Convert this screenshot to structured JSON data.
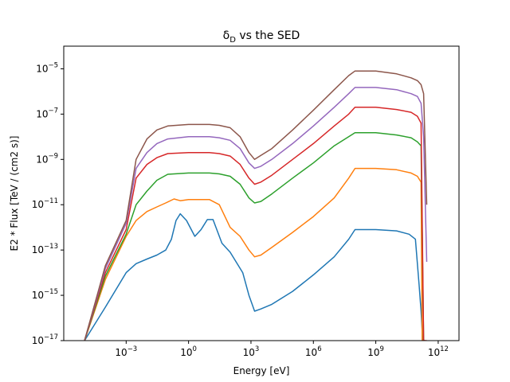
{
  "chart_data": {
    "type": "line",
    "title": "δ",
    "title_sub": "D",
    "title_rest": " vs the SED",
    "xlabel": "Energy [eV]",
    "ylabel": "E2 * Flux [TeV / (cm2 s)]",
    "x_scale": "log",
    "y_scale": "log",
    "xlim": [
      1e-06,
      10000000000000.0
    ],
    "ylim": [
      1e-17,
      0.0001
    ],
    "grid": false,
    "legend": "none",
    "x_ticks": [
      {
        "value": 0.001,
        "base": "10",
        "exp": "−3"
      },
      {
        "value": 1,
        "base": "10",
        "exp": "0"
      },
      {
        "value": 1000,
        "base": "10",
        "exp": "3"
      },
      {
        "value": 1000000,
        "base": "10",
        "exp": "6"
      },
      {
        "value": 1000000000,
        "base": "10",
        "exp": "9"
      },
      {
        "value": 1000000000000,
        "base": "10",
        "exp": "12"
      }
    ],
    "y_ticks": [
      {
        "value": 1e-17,
        "base": "10",
        "exp": "−17"
      },
      {
        "value": 1e-15,
        "base": "10",
        "exp": "−15"
      },
      {
        "value": 1e-13,
        "base": "10",
        "exp": "−13"
      },
      {
        "value": 1e-11,
        "base": "10",
        "exp": "−11"
      },
      {
        "value": 1e-09,
        "base": "10",
        "exp": "−9"
      },
      {
        "value": 1e-07,
        "base": "10",
        "exp": "−7"
      },
      {
        "value": 1e-05,
        "base": "10",
        "exp": "−5"
      }
    ],
    "series": [
      {
        "color": "#1f77b4",
        "x": [
          1e-05,
          0.0001,
          0.001,
          0.003,
          0.01,
          0.03,
          0.08,
          0.15,
          0.25,
          0.4,
          0.8,
          2,
          4,
          8,
          15,
          40,
          100,
          400,
          800,
          1500,
          3000,
          10000,
          100000,
          1000000,
          10000000,
          50000000,
          100000000,
          1000000000,
          10000000000,
          40000000000,
          80000000000,
          120000000000,
          150000000000,
          180000000000,
          220000000000
        ],
        "y": [
          1e-17,
          3e-16,
          1e-14,
          2.5e-14,
          4e-14,
          6e-14,
          1e-13,
          3e-13,
          2e-12,
          4e-12,
          2e-12,
          4e-13,
          8e-13,
          2.2e-12,
          2.2e-12,
          2e-13,
          8e-14,
          1e-14,
          1e-15,
          2e-16,
          2.5e-16,
          4e-16,
          1.5e-15,
          8e-15,
          5e-14,
          3e-13,
          8e-13,
          8e-13,
          7e-13,
          5e-13,
          3e-13,
          3e-15,
          2e-16,
          1e-17,
          1e-17
        ]
      },
      {
        "color": "#ff7f0e",
        "x": [
          1e-05,
          0.0001,
          0.001,
          0.003,
          0.01,
          0.03,
          0.08,
          0.2,
          0.4,
          1,
          10,
          30,
          100,
          300,
          800,
          1500,
          3000,
          10000,
          100000,
          1000000,
          10000000,
          50000000,
          100000000,
          1000000000,
          10000000000,
          50000000000,
          100000000000,
          150000000000,
          170000000000,
          200000000000
        ],
        "y": [
          1e-17,
          5e-15,
          4e-13,
          2e-12,
          5e-12,
          8e-12,
          1.2e-11,
          1.8e-11,
          1.5e-11,
          1.7e-11,
          1.7e-11,
          1e-11,
          1e-12,
          4e-13,
          1e-13,
          5e-14,
          6e-14,
          1.3e-13,
          6e-13,
          3e-12,
          2e-11,
          1.5e-10,
          4e-10,
          4e-10,
          3.5e-10,
          2.5e-10,
          1.8e-10,
          1e-10,
          1e-17,
          1e-17
        ]
      },
      {
        "color": "#2ca02c",
        "x": [
          1e-05,
          0.0001,
          0.001,
          0.003,
          0.01,
          0.03,
          0.1,
          1,
          10,
          30,
          100,
          300,
          800,
          1500,
          3000,
          10000,
          100000,
          1000000,
          10000000,
          50000000,
          100000000,
          1000000000,
          10000000000,
          50000000000,
          100000000000,
          150000000000,
          200000000000,
          230000000000
        ],
        "y": [
          1e-17,
          7e-15,
          5e-13,
          1e-11,
          4e-11,
          1.2e-10,
          2.2e-10,
          2.5e-10,
          2.5e-10,
          2.3e-10,
          1.8e-10,
          8e-11,
          2e-11,
          1.2e-11,
          1.4e-11,
          3e-11,
          1.5e-10,
          7e-10,
          4e-09,
          1e-08,
          1.5e-08,
          1.5e-08,
          1.2e-08,
          9e-09,
          6e-09,
          4e-09,
          1e-17,
          1e-17
        ]
      },
      {
        "color": "#d62728",
        "x": [
          1e-05,
          0.0001,
          0.001,
          0.003,
          0.01,
          0.03,
          0.1,
          1,
          10,
          30,
          100,
          300,
          800,
          1500,
          3000,
          10000,
          100000,
          1000000,
          10000000,
          50000000,
          100000000,
          1000000000,
          10000000000,
          50000000000,
          100000000000,
          150000000000,
          200000000000,
          250000000000,
          280000000000
        ],
        "y": [
          1e-17,
          1e-14,
          8e-13,
          1.5e-10,
          6e-10,
          1.2e-09,
          1.8e-09,
          2e-09,
          2e-09,
          1.8e-09,
          1.4e-09,
          6e-10,
          1.5e-10,
          8e-11,
          1e-10,
          2e-10,
          1e-09,
          5e-09,
          3e-08,
          1e-07,
          2e-07,
          2e-07,
          1.6e-07,
          1.2e-07,
          8e-08,
          4e-08,
          1e-17,
          1e-17,
          1e-17
        ]
      },
      {
        "color": "#9467bd",
        "x": [
          1e-05,
          0.0001,
          0.001,
          0.003,
          0.01,
          0.03,
          0.1,
          1,
          10,
          30,
          100,
          300,
          800,
          1500,
          3000,
          10000,
          100000,
          1000000,
          10000000,
          50000000,
          100000000,
          1000000000,
          10000000000,
          50000000000,
          100000000000,
          150000000000,
          200000000000,
          280000000000
        ],
        "y": [
          1e-17,
          1.5e-14,
          1.5e-12,
          4e-10,
          2e-09,
          5e-09,
          8e-09,
          1e-08,
          1e-08,
          9e-09,
          7e-09,
          3e-09,
          7e-10,
          4e-10,
          5e-10,
          1e-09,
          5e-09,
          3e-08,
          2e-07,
          8e-07,
          1.5e-06,
          1.5e-06,
          1.2e-06,
          8e-07,
          6e-07,
          3e-07,
          1e-08,
          3e-14
        ]
      },
      {
        "color": "#8c564b",
        "x": [
          1e-05,
          0.0001,
          0.001,
          0.003,
          0.01,
          0.03,
          0.1,
          1,
          10,
          30,
          100,
          300,
          800,
          1500,
          3000,
          10000,
          100000,
          1000000,
          10000000,
          50000000,
          100000000,
          1000000000,
          10000000000,
          50000000000,
          100000000000,
          150000000000,
          200000000000,
          280000000000
        ],
        "y": [
          1e-17,
          2e-14,
          2e-12,
          1e-09,
          8e-09,
          2e-08,
          3e-08,
          3.5e-08,
          3.5e-08,
          3.2e-08,
          2.5e-08,
          1e-08,
          2e-09,
          1e-09,
          1.5e-09,
          3e-09,
          2e-08,
          1.5e-07,
          1.2e-06,
          5e-06,
          8e-06,
          8e-06,
          6e-06,
          4e-06,
          3e-06,
          2e-06,
          8e-07,
          1e-11
        ]
      }
    ]
  }
}
